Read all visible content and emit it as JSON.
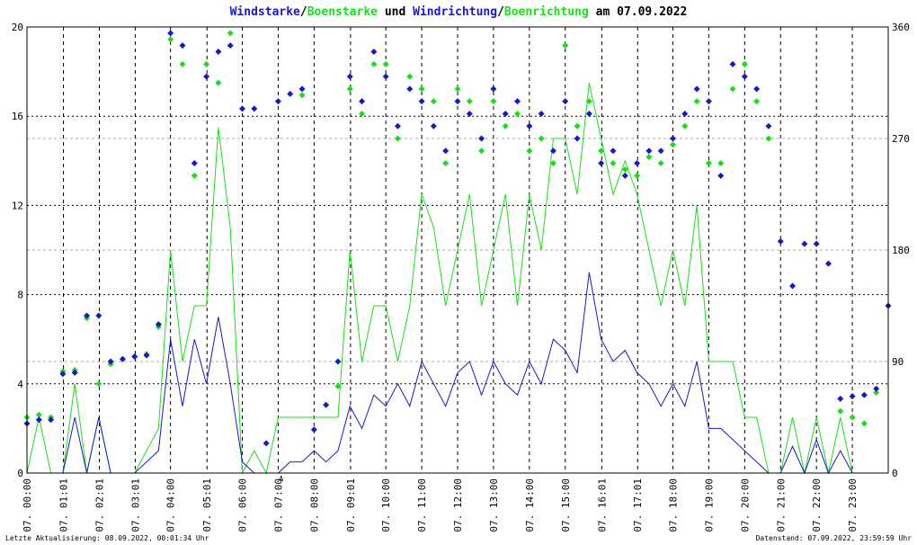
{
  "chart_data": {
    "type": "line",
    "title_parts": [
      {
        "text": "Windstarke",
        "color": "#1818c8"
      },
      {
        "text": "/",
        "color": "#000000"
      },
      {
        "text": "Boenstarke",
        "color": "#18e018"
      },
      {
        "text": " und ",
        "color": "#000000"
      },
      {
        "text": "Windrichtung",
        "color": "#1818c8"
      },
      {
        "text": "/",
        "color": "#000000"
      },
      {
        "text": "Boenrichtung",
        "color": "#18e018"
      },
      {
        "text": " am 07.09.2022",
        "color": "#000000"
      }
    ],
    "footer_left": "Letzte Aktualisierung: 08.09.2022, 00:01:34 Uhr",
    "footer_right": "Datenstand: 07.09.2022, 23:59:59 Uhr",
    "annotations": [
      {
        "text": "A",
        "x": 425,
        "color": "#ff0000"
      }
    ],
    "xlim": [
      0,
      1440
    ],
    "xticks": [
      {
        "value": 0,
        "label": "07. 00:00"
      },
      {
        "value": 61,
        "label": "07. 01:01"
      },
      {
        "value": 121,
        "label": "07. 02:01"
      },
      {
        "value": 181,
        "label": "07. 03:01"
      },
      {
        "value": 240,
        "label": "07. 04:00"
      },
      {
        "value": 301,
        "label": "07. 05:01"
      },
      {
        "value": 360,
        "label": "07. 06:00"
      },
      {
        "value": 420,
        "label": "07. 07:00"
      },
      {
        "value": 480,
        "label": "07. 08:00"
      },
      {
        "value": 541,
        "label": "07. 09:01"
      },
      {
        "value": 600,
        "label": "07. 10:00"
      },
      {
        "value": 660,
        "label": "07. 11:00"
      },
      {
        "value": 720,
        "label": "07. 12:00"
      },
      {
        "value": 780,
        "label": "07. 13:00"
      },
      {
        "value": 840,
        "label": "07. 14:00"
      },
      {
        "value": 900,
        "label": "07. 15:00"
      },
      {
        "value": 961,
        "label": "07. 16:01"
      },
      {
        "value": 1021,
        "label": "07. 17:01"
      },
      {
        "value": 1080,
        "label": "07. 18:00"
      },
      {
        "value": 1140,
        "label": "07. 19:00"
      },
      {
        "value": 1200,
        "label": "07. 20:00"
      },
      {
        "value": 1260,
        "label": "07. 21:00"
      },
      {
        "value": 1320,
        "label": "07. 22:00"
      },
      {
        "value": 1380,
        "label": "07. 23:00"
      }
    ],
    "ylim": [
      0,
      20
    ],
    "yticks": [
      0,
      4,
      8,
      12,
      16,
      20
    ],
    "y2lim": [
      0,
      360
    ],
    "y2ticks": [
      0,
      90,
      180,
      270,
      360
    ],
    "grid": true,
    "x": [
      0,
      20,
      40,
      60,
      80,
      100,
      120,
      140,
      160,
      180,
      200,
      220,
      240,
      260,
      280,
      300,
      320,
      340,
      360,
      380,
      400,
      420,
      440,
      460,
      480,
      500,
      520,
      540,
      560,
      580,
      600,
      620,
      640,
      660,
      680,
      700,
      720,
      740,
      760,
      780,
      800,
      820,
      840,
      860,
      880,
      900,
      920,
      940,
      960,
      980,
      1000,
      1020,
      1040,
      1060,
      1080,
      1100,
      1120,
      1140,
      1160,
      1180,
      1200,
      1220,
      1240,
      1260,
      1280,
      1300,
      1320,
      1340,
      1360,
      1380,
      1400,
      1420,
      1440
    ],
    "series": [
      {
        "type": "line",
        "color": "#18e018",
        "values": [
          0,
          2.5,
          0,
          0,
          4,
          0,
          2.5,
          0,
          0,
          0,
          1,
          2,
          10,
          5,
          7.5,
          7.5,
          15.5,
          11,
          0,
          1,
          0,
          2.5,
          2.5,
          2.5,
          2.5,
          2.5,
          2.5,
          10,
          5,
          7.5,
          7.5,
          5,
          7.5,
          12.5,
          11,
          7.5,
          10,
          12.5,
          7.5,
          10,
          12.5,
          7.5,
          12.5,
          10,
          15,
          15,
          12.5,
          17.5,
          15,
          12.5,
          14,
          12.5,
          10,
          7.5,
          10,
          7.5,
          12,
          5,
          5,
          5,
          2.5,
          2.5,
          0,
          0,
          2.5,
          0,
          2.5,
          0,
          2.5,
          0,
          0,
          0,
          0
        ]
      },
      {
        "type": "line",
        "color": "#1818c8",
        "values": [
          0,
          0,
          0,
          0,
          2.5,
          0,
          2.5,
          0,
          0,
          0,
          0.5,
          1,
          6,
          3,
          6,
          4,
          7,
          4,
          0.5,
          0,
          0,
          0,
          0.5,
          0.5,
          1,
          0.5,
          1,
          3,
          2,
          3.5,
          3,
          4,
          3,
          5,
          4,
          3,
          4.5,
          5,
          3.5,
          5,
          4,
          3.5,
          5,
          4,
          6,
          5.5,
          4.5,
          9,
          6,
          5,
          5.5,
          4.5,
          4,
          3,
          4,
          3,
          5,
          2,
          2,
          1.5,
          1,
          0.5,
          0,
          0,
          1.2,
          0,
          1.5,
          0,
          1,
          0,
          0,
          0,
          0
        ]
      },
      {
        "type": "scatter",
        "axis": "y2",
        "color": "#18e018",
        "values": [
          45,
          47,
          45,
          82,
          83,
          125,
          72,
          88,
          92,
          94,
          96,
          118,
          350,
          330,
          240,
          330,
          315,
          355,
          null,
          null,
          null,
          null,
          null,
          305,
          null,
          null,
          70,
          310,
          290,
          330,
          330,
          270,
          320,
          310,
          300,
          250,
          310,
          300,
          260,
          300,
          280,
          290,
          260,
          270,
          250,
          345,
          280,
          300,
          260,
          250,
          245,
          240,
          255,
          250,
          265,
          280,
          300,
          250,
          250,
          310,
          330,
          300,
          270,
          null,
          null,
          null,
          null,
          null,
          50,
          45,
          40,
          65,
          null
        ]
      },
      {
        "type": "scatter",
        "axis": "y2",
        "color": "#1818c8",
        "values": [
          40,
          43,
          43,
          80,
          81,
          127,
          127,
          90,
          92,
          94,
          95,
          120,
          355,
          345,
          250,
          320,
          340,
          345,
          294,
          294,
          24,
          300,
          306,
          310,
          35,
          55,
          90,
          320,
          300,
          340,
          320,
          280,
          310,
          300,
          280,
          260,
          300,
          290,
          270,
          310,
          290,
          300,
          280,
          290,
          260,
          300,
          270,
          290,
          250,
          260,
          240,
          250,
          260,
          260,
          270,
          290,
          310,
          300,
          240,
          330,
          320,
          310,
          280,
          187,
          151,
          185,
          185,
          169,
          60,
          62,
          63,
          68,
          135
        ]
      }
    ]
  }
}
